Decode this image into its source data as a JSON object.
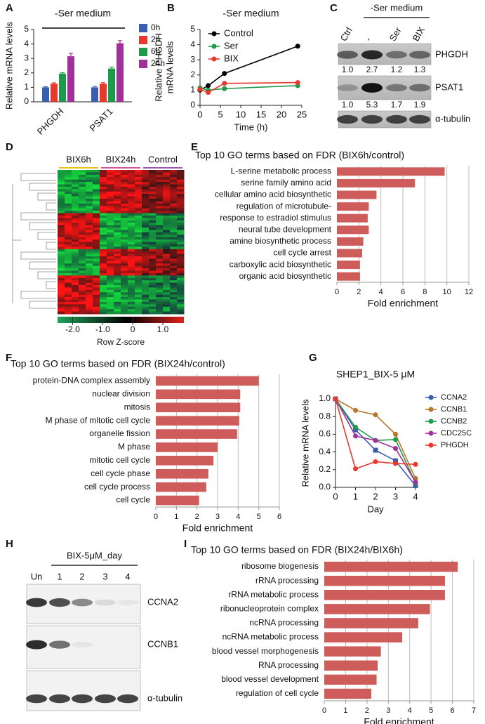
{
  "chart_data": [
    {
      "type": "grouped-bar",
      "panel": "A",
      "title": "-Ser medium",
      "ylabel": "Relative mRNA levels",
      "categories": [
        "PHGDH",
        "PSAT1"
      ],
      "series": [
        {
          "name": "0h",
          "color": "#3a5fb0",
          "values": [
            1.0,
            1.0
          ],
          "errors": [
            0.04,
            0.06
          ]
        },
        {
          "name": "2h",
          "color": "#e8392f",
          "values": [
            1.25,
            1.25
          ],
          "errors": [
            0.06,
            0.07
          ]
        },
        {
          "name": "6h",
          "color": "#1f9a4b",
          "values": [
            1.95,
            2.3
          ],
          "errors": [
            0.06,
            0.1
          ]
        },
        {
          "name": "24h",
          "color": "#a0309a",
          "values": [
            3.15,
            4.05
          ],
          "errors": [
            0.2,
            0.18
          ]
        }
      ],
      "ylim": [
        0,
        5
      ],
      "yticks": [
        0,
        1,
        2,
        3,
        4,
        5
      ]
    },
    {
      "type": "line",
      "panel": "B",
      "title": "-Ser medium",
      "ylabel": [
        "Relative PHGDH",
        "mRNA levels"
      ],
      "xlabel": "Time (h)",
      "x": [
        0,
        2,
        6,
        24
      ],
      "series": [
        {
          "name": "Control",
          "color": "#000000",
          "values": [
            1.0,
            1.3,
            2.1,
            3.9
          ]
        },
        {
          "name": "Ser",
          "color": "#1f9a4b",
          "values": [
            1.15,
            1.0,
            1.1,
            1.3
          ]
        },
        {
          "name": "BIX",
          "color": "#e8392f",
          "values": [
            1.05,
            0.85,
            1.45,
            1.5
          ]
        }
      ],
      "xlim": [
        0,
        25
      ],
      "xticks": [
        0,
        5,
        10,
        15,
        20,
        25
      ],
      "ylim": [
        0,
        5
      ],
      "yticks": [
        0,
        1,
        2,
        3,
        4,
        5
      ]
    },
    {
      "type": "colorbar",
      "panel": "D",
      "groups": [
        "BIX6h",
        "BIX24h",
        "Control"
      ],
      "xlabel": "Row Z-score",
      "xlim": [
        -2.5,
        1.7
      ],
      "xticks": [
        {
          "value": -2,
          "label": "-2.0"
        },
        {
          "value": -1,
          "label": "-1.0"
        },
        0,
        {
          "value": 1,
          "label": "1.0"
        }
      ]
    },
    {
      "type": "hbar",
      "panel": "E",
      "title": "Top 10 GO terms based on FDR (BIX6h/control)",
      "xlabel": "Fold enrichment",
      "color": "#cd5c5a",
      "categories": [
        "L-serine metabolic process",
        "serine family amino acid",
        "cellular amino acid biosynthetic",
        "regulation of microtubule-",
        "response to estradiol stimulus",
        "neural tube development",
        "amine biosynthetic process",
        "cell cycle arrest",
        "carboxylic acid biosynthetic",
        "organic acid biosynthetic"
      ],
      "values": [
        9.8,
        7.1,
        3.6,
        2.9,
        2.8,
        2.9,
        2.4,
        2.3,
        2.1,
        2.1
      ],
      "xlim": [
        0,
        12
      ],
      "xticks": [
        0,
        2,
        4,
        6,
        8,
        10,
        12
      ],
      "grid": true
    },
    {
      "type": "hbar",
      "panel": "F",
      "title": "Top 10 GO terms based on FDR (BIX24h/control)",
      "xlabel": "Fold enrichment",
      "color": "#cd5c5a",
      "categories": [
        "protein-DNA complex assembly",
        "nuclear division",
        "mitosis",
        "M phase of mitotic cell cycle",
        "organelle fission",
        "M phase",
        "mitotic cell cycle",
        "cell cycle phase",
        "cell cycle process",
        "cell cycle"
      ],
      "values": [
        5.0,
        4.1,
        4.1,
        4.05,
        3.95,
        3.0,
        2.8,
        2.55,
        2.45,
        2.1
      ],
      "xlim": [
        0,
        6
      ],
      "xticks": [
        0,
        1,
        2,
        3,
        4,
        5,
        6
      ],
      "grid": true
    },
    {
      "type": "line",
      "panel": "G",
      "title": "SHEP1_BIX-5 μM",
      "ylabel": [
        "Relative mRNA levels"
      ],
      "xlabel": "Day",
      "x": [
        0,
        1,
        2,
        3,
        4
      ],
      "series": [
        {
          "name": "CCNA2",
          "color": "#3a5fb0",
          "values": [
            1.0,
            0.65,
            0.42,
            0.3,
            0.02
          ]
        },
        {
          "name": "CCNB1",
          "color": "#b8762a",
          "values": [
            1.0,
            0.87,
            0.82,
            0.6,
            0.1
          ]
        },
        {
          "name": "CCNB2",
          "color": "#1f9a4b",
          "values": [
            1.0,
            0.68,
            0.53,
            0.54,
            0.05
          ]
        },
        {
          "name": "CDC25C",
          "color": "#a0309a",
          "values": [
            1.0,
            0.58,
            0.53,
            0.44,
            0.06
          ]
        },
        {
          "name": "PHGDH",
          "color": "#e8392f",
          "values": [
            1.0,
            0.21,
            0.29,
            0.27,
            0.26
          ]
        }
      ],
      "xlim": [
        0,
        4
      ],
      "xticks": [
        0,
        1,
        2,
        3,
        4
      ],
      "ylim": [
        0,
        1
      ],
      "yticks": [
        {
          "value": 0,
          "label": "0.0"
        },
        {
          "value": 0.2,
          "label": "0.2"
        },
        {
          "value": 0.4,
          "label": "0.4"
        },
        {
          "value": 0.6,
          "label": "0.6"
        },
        {
          "value": 0.8,
          "label": "0.8"
        },
        {
          "value": 1,
          "label": "1.0"
        }
      ]
    },
    {
      "type": "hbar",
      "panel": "I",
      "title": "Top 10 GO terms based on FDR (BIX24h/BIX6h)",
      "xlabel": "Fold enrichment",
      "color": "#cd5c5a",
      "categories": [
        "ribosome biogenesis",
        "rRNA processing",
        "rRNA metabolic process",
        "ribonucleoprotein complex",
        "ncRNA processing",
        "ncRNA metabolic process",
        "blood vessel morphogenesis",
        "RNA processing",
        "blood vessel development",
        "regulation of cell cycle"
      ],
      "values": [
        6.25,
        5.65,
        5.65,
        4.95,
        4.4,
        3.65,
        2.65,
        2.5,
        2.45,
        2.2
      ],
      "xlim": [
        0,
        7
      ],
      "xticks": [
        0,
        1,
        2,
        3,
        4,
        5,
        6,
        7
      ],
      "grid": true
    }
  ],
  "blots": [
    {
      "panel": "C",
      "header": "-Ser medium",
      "lanes": [
        "Ctrl",
        "-",
        "Ser",
        "BIX"
      ],
      "rows": [
        {
          "name": "PHGDH",
          "values": [
            "1.0",
            "2.7",
            "1.2",
            "1.3"
          ]
        },
        {
          "name": "PSAT1",
          "values": [
            "1.0",
            "5.3",
            "1.7",
            "1.9"
          ]
        },
        {
          "name": "α-tubulin"
        }
      ]
    },
    {
      "panel": "H",
      "header": "BIX-5μM_day",
      "lanes": [
        "Un",
        "1",
        "2",
        "3",
        "4"
      ],
      "rows": [
        {
          "name": "CCNA2"
        },
        {
          "name": "CCNB1"
        },
        {
          "name": "α-tubulin"
        }
      ]
    }
  ]
}
